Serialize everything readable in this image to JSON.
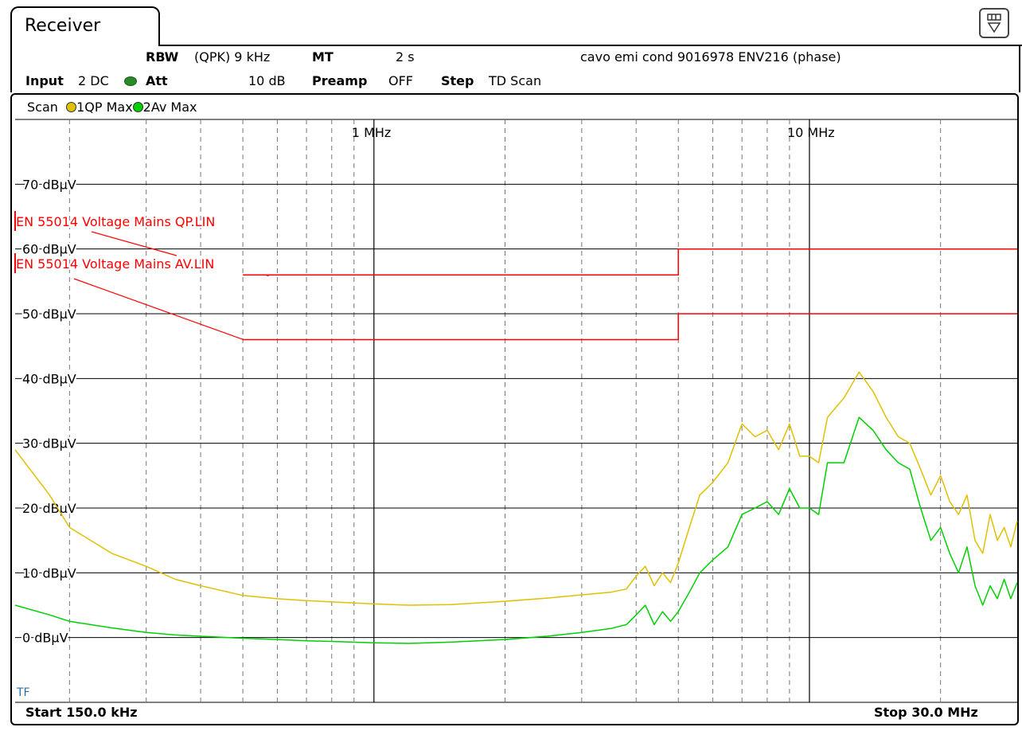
{
  "tab": {
    "title": "Receiver"
  },
  "header": {
    "rbw_label": "RBW",
    "rbw_value": "(QPK) 9 kHz",
    "mt_label": "MT",
    "mt_value": "2 s",
    "description": "cavo emi cond 9016978 ENV216 (phase)",
    "input_label": "Input",
    "input_value": "2 DC",
    "att_label": "Att",
    "att_value": "10 dB",
    "preamp_label": "Preamp",
    "preamp_value": "OFF",
    "step_label": "Step",
    "step_value": "TD Scan"
  },
  "scan": {
    "label": "Scan",
    "trace1": "1QP Max",
    "trace2": "2Av Max"
  },
  "footer": {
    "start": "Start 150.0 kHz",
    "stop": "Stop 30.0 MHz"
  },
  "tf_label": "TF",
  "icons": {
    "menu": "menu-dropdown-icon"
  },
  "colors": {
    "qp": "#E0C000",
    "av": "#00D000",
    "limit": "#FF0000"
  },
  "chart_data": {
    "type": "line",
    "x_scale": "log",
    "x_unit": "MHz",
    "xlim": [
      0.15,
      30
    ],
    "ylim": [
      -10,
      80
    ],
    "x_tick_labels": [
      {
        "x": 1,
        "label": "1 MHz"
      },
      {
        "x": 10,
        "label": "10 MHz"
      }
    ],
    "y_tick_labels": [
      {
        "y": 70,
        "label": "70 dBµV"
      },
      {
        "y": 60,
        "label": "60 dBµV"
      },
      {
        "y": 50,
        "label": "50 dBµV"
      },
      {
        "y": 40,
        "label": "40 dBµV"
      },
      {
        "y": 30,
        "label": "30 dBµV"
      },
      {
        "y": 20,
        "label": "20 dBµV"
      },
      {
        "y": 10,
        "label": "10 dBµV"
      },
      {
        "y": 0,
        "label": "0 dBµV"
      }
    ],
    "grid": true,
    "limits": [
      {
        "name": "EN 55014 Voltage Mains QP.LIN",
        "x": [
          0.5,
          5,
          5,
          30
        ],
        "y": [
          56,
          56,
          60,
          60
        ]
      },
      {
        "name": "EN 55014 Voltage Mains AV.LIN",
        "x": [
          0.5,
          5,
          5,
          30
        ],
        "y": [
          46,
          46,
          50,
          50
        ]
      }
    ],
    "series": [
      {
        "name": "1QP Max",
        "x": [
          0.15,
          0.18,
          0.2,
          0.25,
          0.3,
          0.35,
          0.4,
          0.5,
          0.6,
          0.7,
          0.8,
          1.0,
          1.2,
          1.5,
          2.0,
          2.5,
          3.0,
          3.5,
          3.8,
          4.0,
          4.2,
          4.4,
          4.6,
          4.8,
          5.0,
          5.3,
          5.6,
          6.0,
          6.5,
          7.0,
          7.5,
          8.0,
          8.5,
          9.0,
          9.5,
          10.0,
          10.5,
          11.0,
          12.0,
          13.0,
          14.0,
          15.0,
          16.0,
          17.0,
          18.0,
          19.0,
          20.0,
          21.0,
          22.0,
          23.0,
          24.0,
          25.0,
          26.0,
          27.0,
          28.0,
          29.0,
          30.0
        ],
        "y": [
          29,
          22,
          17,
          13,
          11,
          9,
          8,
          6.5,
          6,
          5.7,
          5.5,
          5.2,
          5.0,
          5.1,
          5.6,
          6.1,
          6.6,
          7.0,
          7.5,
          9.5,
          11,
          8,
          10,
          8.5,
          11.5,
          17,
          22,
          24,
          27,
          33,
          31,
          32,
          29,
          33,
          28,
          28,
          27,
          34,
          37,
          41,
          38,
          34,
          31,
          30,
          26,
          22,
          25,
          21,
          19,
          22,
          15,
          13,
          19,
          15,
          17,
          14,
          18
        ]
      },
      {
        "name": "2Av Max",
        "x": [
          0.15,
          0.18,
          0.2,
          0.25,
          0.3,
          0.35,
          0.4,
          0.5,
          0.6,
          0.7,
          0.8,
          1.0,
          1.2,
          1.5,
          2.0,
          2.5,
          3.0,
          3.5,
          3.8,
          4.0,
          4.2,
          4.4,
          4.6,
          4.8,
          5.0,
          5.3,
          5.6,
          6.0,
          6.5,
          7.0,
          7.5,
          8.0,
          8.5,
          9.0,
          9.5,
          10.0,
          10.5,
          11.0,
          12.0,
          13.0,
          14.0,
          15.0,
          16.0,
          17.0,
          18.0,
          19.0,
          20.0,
          21.0,
          22.0,
          23.0,
          24.0,
          25.0,
          26.0,
          27.0,
          28.0,
          29.0,
          30.0
        ],
        "y": [
          5,
          3.5,
          2.5,
          1.5,
          0.8,
          0.4,
          0.2,
          -0.1,
          -0.3,
          -0.5,
          -0.6,
          -0.8,
          -0.9,
          -0.7,
          -0.3,
          0.2,
          0.8,
          1.4,
          2,
          3.5,
          5,
          2,
          4,
          2.5,
          4,
          7,
          10,
          12,
          14,
          19,
          20,
          21,
          19,
          23,
          20,
          20,
          19,
          27,
          27,
          34,
          32,
          29,
          27,
          26,
          20,
          15,
          17,
          13,
          10,
          14,
          8,
          5,
          8,
          6,
          9,
          6,
          8.5
        ]
      }
    ]
  }
}
